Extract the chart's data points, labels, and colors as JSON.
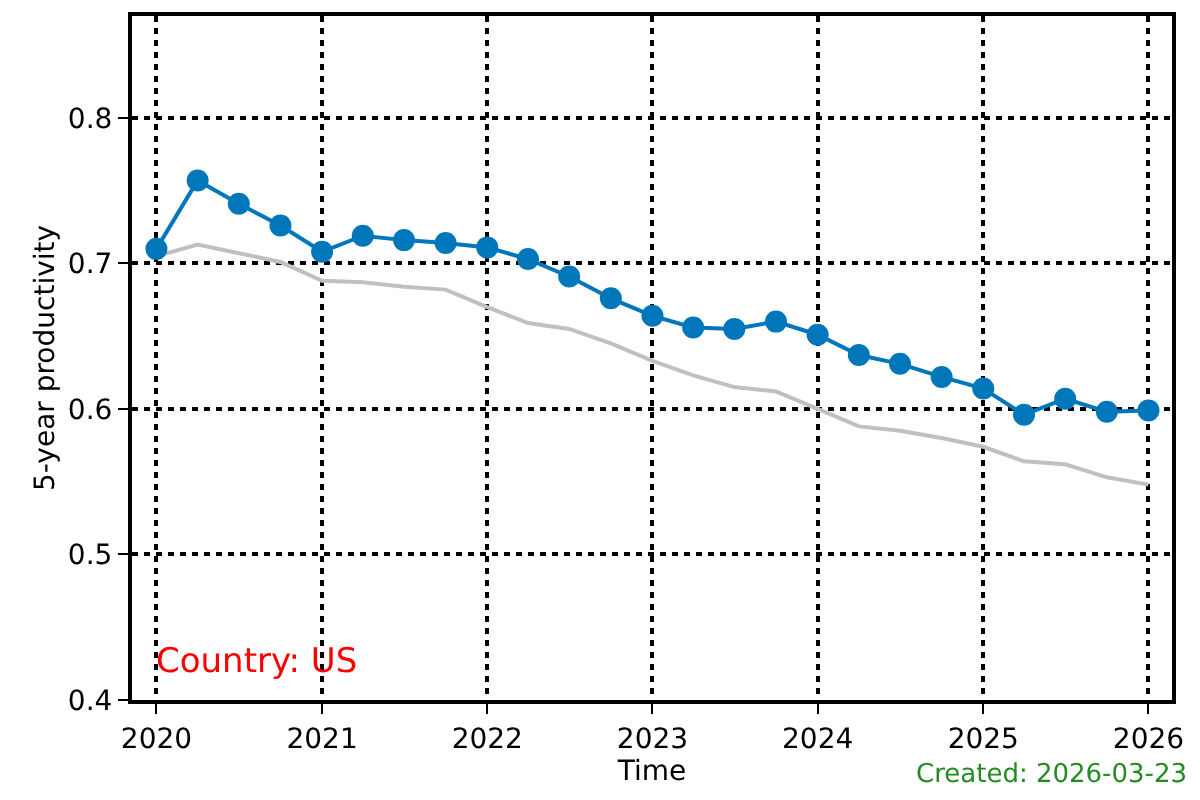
{
  "chart_data": {
    "type": "line",
    "xlabel": "Time",
    "ylabel": "5-year productivity",
    "x": [
      "2020-01",
      "2020-04",
      "2020-07",
      "2020-10",
      "2021-01",
      "2021-04",
      "2021-07",
      "2021-10",
      "2022-01",
      "2022-04",
      "2022-07",
      "2022-10",
      "2023-01",
      "2023-04",
      "2023-07",
      "2023-10",
      "2024-01",
      "2024-04",
      "2024-07",
      "2024-10",
      "2025-01",
      "2025-04",
      "2025-07",
      "2025-10",
      "2026-01"
    ],
    "series": [
      {
        "color": "#c0c0c0",
        "marker": "none",
        "values": [
          0.705,
          0.713,
          0.707,
          0.701,
          0.688,
          0.687,
          0.684,
          0.682,
          0.67,
          0.659,
          0.655,
          0.645,
          0.633,
          0.623,
          0.615,
          0.612,
          0.6,
          0.588,
          0.585,
          0.58,
          0.574,
          0.564,
          0.562,
          0.553,
          0.548
        ]
      },
      {
        "color": "#0077bb",
        "marker": "circle",
        "values": [
          0.71,
          0.757,
          0.741,
          0.726,
          0.708,
          0.719,
          0.716,
          0.714,
          0.711,
          0.703,
          0.691,
          0.676,
          0.664,
          0.656,
          0.655,
          0.66,
          0.651,
          0.637,
          0.631,
          0.622,
          0.614,
          0.596,
          0.607,
          0.598,
          0.599
        ]
      }
    ],
    "xlim": [
      "2019-11-08",
      "2026-02-22"
    ],
    "xticks": [
      {
        "value": "2020-01-01",
        "label": "2020"
      },
      {
        "value": "2021-01-01",
        "label": "2021"
      },
      {
        "value": "2022-01-01",
        "label": "2022"
      },
      {
        "value": "2023-01-01",
        "label": "2023"
      },
      {
        "value": "2024-01-01",
        "label": "2024"
      },
      {
        "value": "2025-01-01",
        "label": "2025"
      },
      {
        "value": "2026-01-01",
        "label": "2026"
      }
    ],
    "ylim": [
      0.4,
      0.87
    ],
    "yticks": [
      0.4,
      0.5,
      0.6,
      0.7,
      0.8
    ],
    "grid": true,
    "line_style": "solid",
    "annotations": [
      "Country: US",
      "Created: 2026-03-23"
    ]
  }
}
